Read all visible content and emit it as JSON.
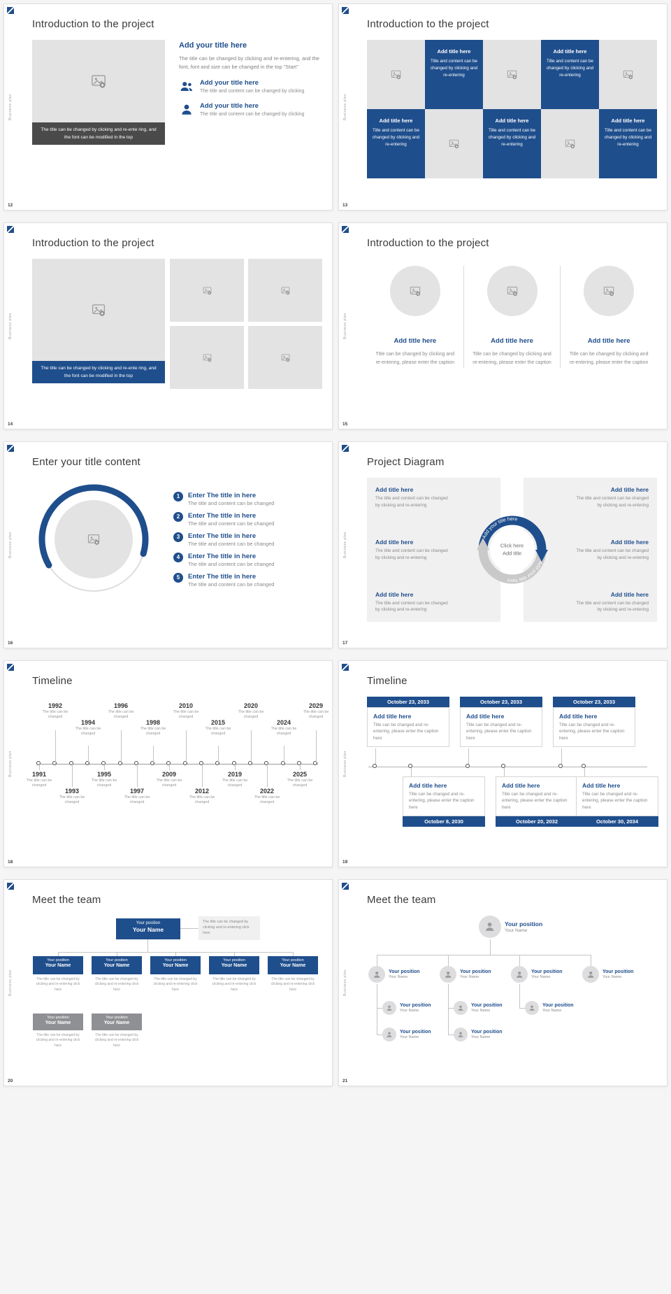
{
  "colors": {
    "accent": "#1f4e8c",
    "placeholder": "#e3e3e4",
    "dark_caption": "#4a4a4a"
  },
  "chrome": {
    "sidebar_text": "Business plan"
  },
  "slides": [
    {
      "number": "12",
      "type": "intro-list",
      "title": "Introduction to the project",
      "image_caption": "The title can be changed by clicking and re-ente ring, and the font can be modified in the top",
      "lead_title": "Add your title here",
      "lead_body": "The title can be changed by clicking and re-entering, and the font, font and size can be changed in the top \"Start\"",
      "items": [
        {
          "icon": "people-icon",
          "title": "Add your title here",
          "body": "The title and content can be changed by clicking"
        },
        {
          "icon": "person-icon",
          "title": "Add your title here",
          "body": "The title and content can be changed by clicking"
        }
      ]
    },
    {
      "number": "13",
      "type": "checkerboard",
      "title": "Introduction to the project",
      "cell_title": "Add title here",
      "cell_body": "Title and content can be changed by clicking and re-entering",
      "pattern": [
        [
          "img",
          "text",
          "img",
          "text",
          "img"
        ],
        [
          "text",
          "img",
          "text",
          "img",
          "text"
        ]
      ]
    },
    {
      "number": "14",
      "type": "image-grid",
      "title": "Introduction to the project",
      "image_caption": "The title can be changed by clicking and re-ente ring, and the font can be modified in the top",
      "small_images": 4
    },
    {
      "number": "15",
      "type": "three-circles",
      "title": "Introduction to the project",
      "item_title": "Add title here",
      "item_body": "Title can be changed by clicking and re-entering, please enter the caption",
      "columns": 3
    },
    {
      "number": "16",
      "type": "numbered-list",
      "title": "Enter your title content",
      "items": [
        {
          "num": "1",
          "title": "Enter The title in here",
          "body": "The title and content can be changed"
        },
        {
          "num": "2",
          "title": "Enter The title in here",
          "body": "The title and content can be changed"
        },
        {
          "num": "3",
          "title": "Enter The title in here",
          "body": "The title and content can be changed"
        },
        {
          "num": "4",
          "title": "Enter The title in here",
          "body": "The title and content can be changed"
        },
        {
          "num": "5",
          "title": "Enter The title in here",
          "body": "The title and content can be changed"
        }
      ]
    },
    {
      "number": "17",
      "type": "cycle",
      "title": "Project Diagram",
      "center_top": "Click here",
      "center_bottom": "Add title",
      "arc_label": "Add your title here",
      "block_title": "Add title here",
      "block_body": "The title and content can be changed by clicking and re-entering",
      "left_blocks": 3,
      "right_blocks": 3
    },
    {
      "number": "18",
      "type": "timeline-years",
      "title": "Timeline",
      "point_caption": "The title can be changed",
      "years": [
        "1991",
        "1992",
        "1993",
        "1994",
        "1995",
        "1996",
        "1997",
        "1998",
        "2009",
        "2010",
        "2012",
        "2015",
        "2019",
        "2020",
        "2022",
        "2024",
        "2025",
        "2029"
      ]
    },
    {
      "number": "19",
      "type": "timeline-dates",
      "title": "Timeline",
      "item_title": "Add title here",
      "item_body": "Title can be changed and re-entering, please enter the caption here",
      "top_dates": [
        "October 23, 2033",
        "October 23, 2033",
        "October 23, 2033"
      ],
      "bottom_dates": [
        "October 8, 2030",
        "October 20, 2032",
        "October 30, 2034"
      ]
    },
    {
      "number": "20",
      "type": "org-boxes",
      "title": "Meet the team",
      "position": "Your position",
      "name": "Your Name",
      "note": "The title can be changed by clicking and re-entering click here",
      "caption": "The title can be changed by clicking and re-entering click here",
      "primary_count": 5,
      "secondary_count": 2
    },
    {
      "number": "21",
      "type": "org-circles",
      "title": "Meet the team",
      "position": "Your position",
      "name": "Your Name",
      "row_counts": [
        1,
        4,
        3,
        2
      ]
    }
  ]
}
